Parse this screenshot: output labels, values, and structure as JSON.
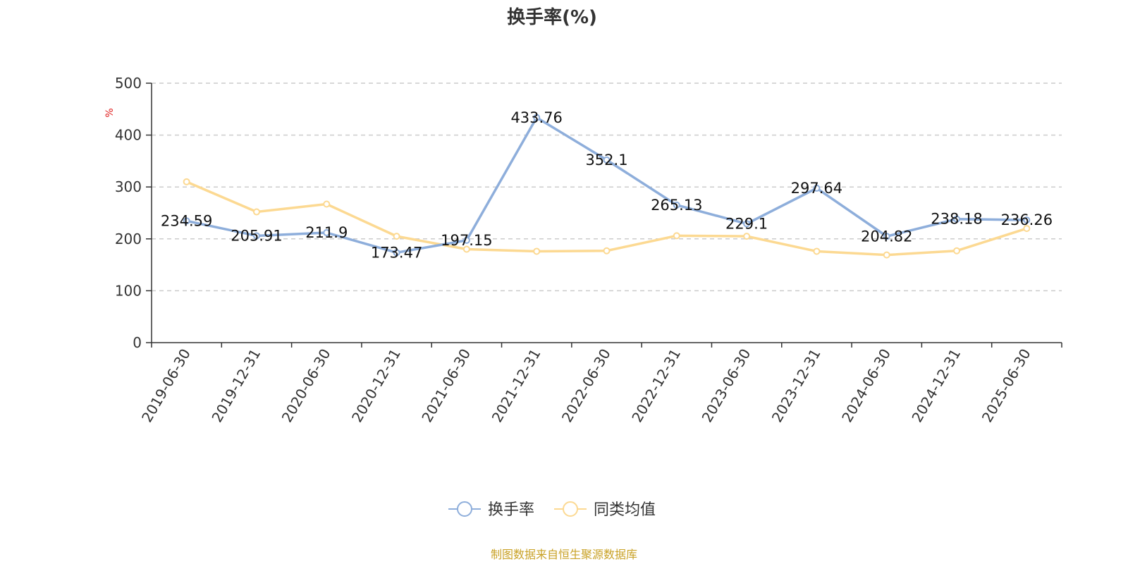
{
  "chart_data": {
    "type": "line",
    "title": "换手率(%)",
    "ylabel": "%",
    "ylim": [
      0,
      500
    ],
    "yticks": [
      "0",
      "100",
      "200",
      "300",
      "400",
      "500"
    ],
    "grid": true,
    "legend_position": "bottom",
    "categories": [
      "2019-06-30",
      "2019-12-31",
      "2020-06-30",
      "2020-12-31",
      "2021-06-30",
      "2021-12-31",
      "2022-06-30",
      "2022-12-31",
      "2023-06-30",
      "2023-12-31",
      "2024-06-30",
      "2024-12-31",
      "2025-06-30"
    ],
    "series": [
      {
        "name": "换手率",
        "color": "#8eaedb",
        "values": [
          234.59,
          205.91,
          211.9,
          173.47,
          197.15,
          433.76,
          352.1,
          265.13,
          229.1,
          297.64,
          204.82,
          238.18,
          236.26
        ],
        "labels": [
          "234.59",
          "205.91",
          "211.9",
          "173.47",
          "197.15",
          "433.76",
          "352.1",
          "265.13",
          "229.1",
          "297.64",
          "204.82",
          "238.18",
          "236.26"
        ]
      },
      {
        "name": "同类均值",
        "color": "#fcd992",
        "values": [
          310,
          252,
          267,
          205,
          180,
          176,
          177,
          206,
          205,
          176,
          169,
          177,
          220
        ]
      }
    ],
    "source": "制图数据来自恒生聚源数据库",
    "source_color": "#c9a227",
    "unit_color": "#e02020"
  }
}
